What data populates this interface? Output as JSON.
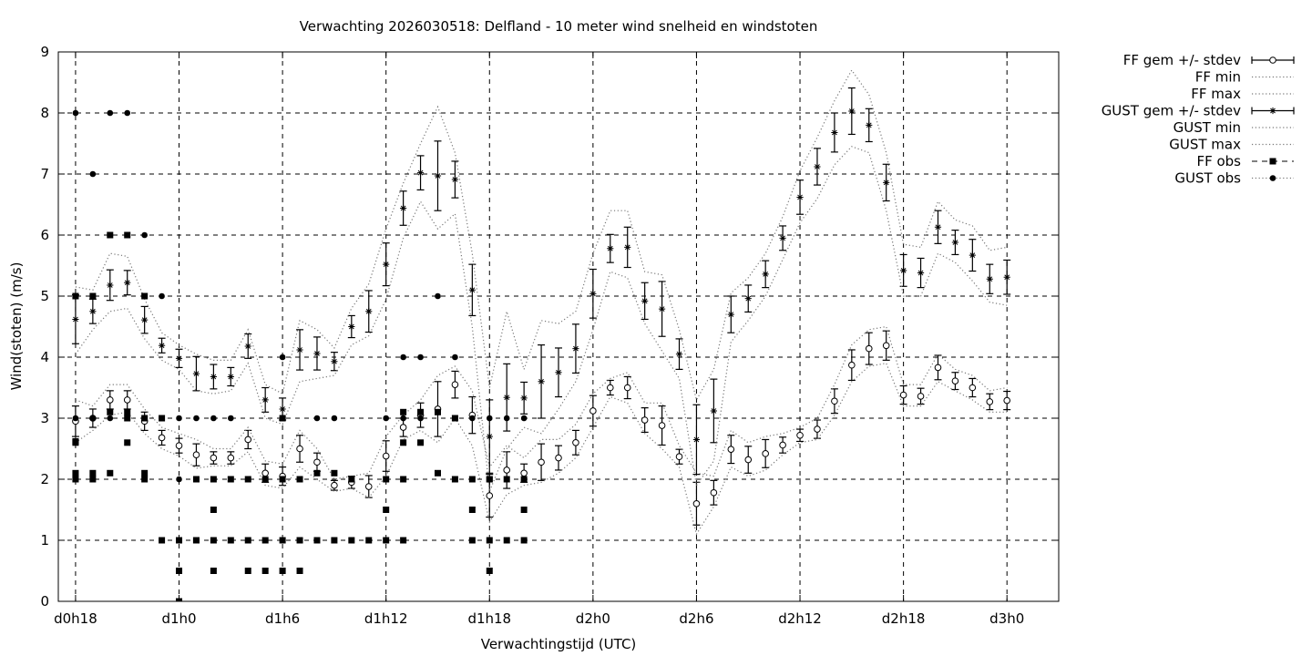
{
  "chart_data": {
    "type": "line",
    "title": "Verwachting 2026030518: Delfland - 10 meter wind snelheid en windstoten",
    "xlabel": "Verwachtingstijd (UTC)",
    "ylabel": "Wind(stoten) (m/s)",
    "ylim": [
      0,
      9
    ],
    "yticks": [
      0,
      1,
      2,
      3,
      4,
      5,
      6,
      7,
      8,
      9
    ],
    "xlim": [
      -1,
      57
    ],
    "xticks": [
      {
        "x": 0,
        "label": "d0h18"
      },
      {
        "x": 6,
        "label": "d1h0"
      },
      {
        "x": 12,
        "label": "d1h6"
      },
      {
        "x": 18,
        "label": "d1h12"
      },
      {
        "x": 24,
        "label": "d1h18"
      },
      {
        "x": 30,
        "label": "d2h0"
      },
      {
        "x": 36,
        "label": "d2h6"
      },
      {
        "x": 42,
        "label": "d2h12"
      },
      {
        "x": 48,
        "label": "d2h18"
      },
      {
        "x": 54,
        "label": "d3h0"
      }
    ],
    "grid": true,
    "legend_position": "outside-top-right",
    "series": [
      {
        "name": "FF gem +/- stdev",
        "style": "errorbar-open-circle",
        "x": [
          0,
          1,
          2,
          3,
          4,
          5,
          6,
          7,
          8,
          9,
          10,
          11,
          12,
          13,
          14,
          15,
          16,
          17,
          18,
          19,
          20,
          21,
          22,
          23,
          24,
          25,
          26,
          27,
          28,
          29,
          30,
          31,
          32,
          33,
          34,
          35,
          36,
          37,
          38,
          39,
          40,
          41,
          42,
          43,
          44,
          45,
          46,
          47,
          48,
          49,
          50,
          51,
          52,
          53,
          54
        ],
        "mean": [
          2.95,
          3.0,
          3.3,
          3.3,
          2.95,
          2.68,
          2.55,
          2.4,
          2.35,
          2.35,
          2.65,
          2.1,
          2.05,
          2.5,
          2.28,
          1.9,
          1.95,
          1.88,
          2.38,
          2.85,
          3.05,
          3.15,
          3.55,
          3.05,
          1.73,
          2.15,
          2.1,
          2.28,
          2.35,
          2.6,
          3.12,
          3.5,
          3.5,
          2.97,
          2.88,
          2.37,
          1.6,
          1.78,
          2.49,
          2.32,
          2.42,
          2.56,
          2.72,
          2.82,
          3.28,
          3.87,
          4.14,
          4.19,
          3.38,
          3.36,
          3.83,
          3.61,
          3.5,
          3.27,
          3.29
        ],
        "stdev": [
          0.25,
          0.15,
          0.15,
          0.15,
          0.15,
          0.12,
          0.12,
          0.18,
          0.1,
          0.1,
          0.15,
          0.15,
          0.15,
          0.22,
          0.15,
          0.08,
          0.1,
          0.18,
          0.25,
          0.15,
          0.2,
          0.45,
          0.22,
          0.3,
          0.35,
          0.3,
          0.15,
          0.3,
          0.2,
          0.2,
          0.25,
          0.12,
          0.18,
          0.2,
          0.32,
          0.12,
          0.35,
          0.2,
          0.23,
          0.22,
          0.23,
          0.13,
          0.1,
          0.15,
          0.2,
          0.25,
          0.26,
          0.24,
          0.15,
          0.13,
          0.2,
          0.14,
          0.15,
          0.13,
          0.15
        ]
      },
      {
        "name": "FF min",
        "style": "dotted",
        "x": [
          0,
          1,
          2,
          3,
          4,
          5,
          6,
          7,
          8,
          9,
          10,
          11,
          12,
          13,
          14,
          15,
          16,
          17,
          18,
          19,
          20,
          21,
          22,
          23,
          24,
          25,
          26,
          27,
          28,
          29,
          30,
          31,
          32,
          33,
          34,
          35,
          36,
          37,
          38,
          39,
          40,
          41,
          42,
          43,
          44,
          45,
          46,
          47,
          48,
          49,
          50,
          51,
          52,
          53,
          54
        ],
        "values": [
          2.6,
          2.8,
          3.05,
          3.1,
          2.75,
          2.5,
          2.38,
          2.18,
          2.22,
          2.22,
          2.45,
          1.9,
          1.85,
          2.2,
          2.0,
          1.8,
          1.85,
          1.7,
          2.05,
          2.65,
          2.8,
          2.6,
          3.0,
          2.55,
          1.3,
          1.75,
          1.9,
          1.95,
          2.1,
          2.35,
          2.85,
          3.35,
          3.25,
          2.75,
          2.5,
          2.2,
          1.1,
          1.55,
          2.2,
          2.05,
          2.15,
          2.4,
          2.6,
          2.65,
          3.05,
          3.6,
          3.85,
          3.9,
          3.2,
          3.2,
          3.6,
          3.45,
          3.3,
          3.1,
          3.1
        ]
      },
      {
        "name": "FF max",
        "style": "dotted",
        "x": [
          0,
          1,
          2,
          3,
          4,
          5,
          6,
          7,
          8,
          9,
          10,
          11,
          12,
          13,
          14,
          15,
          16,
          17,
          18,
          19,
          20,
          21,
          22,
          23,
          24,
          25,
          26,
          27,
          28,
          29,
          30,
          31,
          32,
          33,
          34,
          35,
          36,
          37,
          38,
          39,
          40,
          41,
          42,
          43,
          44,
          45,
          46,
          47,
          48,
          49,
          50,
          51,
          52,
          53,
          54
        ],
        "values": [
          3.3,
          3.2,
          3.55,
          3.55,
          3.15,
          2.85,
          2.75,
          2.65,
          2.5,
          2.5,
          2.85,
          2.3,
          2.25,
          2.8,
          2.5,
          2.0,
          2.05,
          2.1,
          2.7,
          3.05,
          3.3,
          3.7,
          3.85,
          3.45,
          2.2,
          2.55,
          2.35,
          2.65,
          2.65,
          2.9,
          3.4,
          3.65,
          3.75,
          3.25,
          3.25,
          2.55,
          2.1,
          2.05,
          2.8,
          2.6,
          2.7,
          2.75,
          2.85,
          3.0,
          3.55,
          4.2,
          4.45,
          4.5,
          3.55,
          3.55,
          4.05,
          3.8,
          3.7,
          3.45,
          3.5
        ]
      },
      {
        "name": "GUST gem +/- stdev",
        "style": "errorbar-star",
        "x": [
          0,
          1,
          2,
          3,
          4,
          5,
          6,
          7,
          8,
          9,
          10,
          11,
          12,
          13,
          14,
          15,
          16,
          17,
          18,
          19,
          20,
          21,
          22,
          23,
          24,
          25,
          26,
          27,
          28,
          29,
          30,
          31,
          32,
          33,
          34,
          35,
          36,
          37,
          38,
          39,
          40,
          41,
          42,
          43,
          44,
          45,
          46,
          47,
          48,
          49,
          50,
          51,
          52,
          53,
          54
        ],
        "mean": [
          4.62,
          4.75,
          5.18,
          5.22,
          4.61,
          4.19,
          3.98,
          3.73,
          3.68,
          3.68,
          4.18,
          3.3,
          3.15,
          4.12,
          4.06,
          3.93,
          4.5,
          4.75,
          5.52,
          6.44,
          7.02,
          6.97,
          6.91,
          5.1,
          2.7,
          3.34,
          3.33,
          3.6,
          3.75,
          4.14,
          5.04,
          5.78,
          5.8,
          4.92,
          4.79,
          4.05,
          2.65,
          3.12,
          4.7,
          4.96,
          5.36,
          5.95,
          6.62,
          7.12,
          7.68,
          8.03,
          7.8,
          6.86,
          5.42,
          5.38,
          6.13,
          5.88,
          5.67,
          5.28,
          5.31
        ],
        "stdev": [
          0.4,
          0.2,
          0.25,
          0.2,
          0.22,
          0.12,
          0.15,
          0.28,
          0.2,
          0.15,
          0.2,
          0.2,
          0.18,
          0.33,
          0.27,
          0.15,
          0.18,
          0.34,
          0.35,
          0.28,
          0.28,
          0.57,
          0.3,
          0.42,
          0.6,
          0.55,
          0.26,
          0.6,
          0.4,
          0.4,
          0.4,
          0.23,
          0.33,
          0.3,
          0.45,
          0.25,
          0.57,
          0.52,
          0.3,
          0.22,
          0.22,
          0.2,
          0.28,
          0.3,
          0.32,
          0.38,
          0.27,
          0.3,
          0.26,
          0.24,
          0.27,
          0.2,
          0.26,
          0.24,
          0.28
        ]
      },
      {
        "name": "GUST min",
        "style": "dotted",
        "x": [
          0,
          1,
          2,
          3,
          4,
          5,
          6,
          7,
          8,
          9,
          10,
          11,
          12,
          13,
          14,
          15,
          16,
          17,
          18,
          19,
          20,
          21,
          22,
          23,
          24,
          25,
          26,
          27,
          28,
          29,
          30,
          31,
          32,
          33,
          34,
          35,
          36,
          37,
          38,
          39,
          40,
          41,
          42,
          43,
          44,
          45,
          46,
          47,
          48,
          49,
          50,
          51,
          52,
          53,
          54
        ],
        "values": [
          4.05,
          4.45,
          4.75,
          4.8,
          4.3,
          3.95,
          3.8,
          3.45,
          3.4,
          3.45,
          3.9,
          3.0,
          2.9,
          3.6,
          3.65,
          3.7,
          4.2,
          4.35,
          4.95,
          5.95,
          6.55,
          6.1,
          6.35,
          4.5,
          1.8,
          2.5,
          2.85,
          2.75,
          3.15,
          3.6,
          4.45,
          5.4,
          5.3,
          4.55,
          4.1,
          3.65,
          1.9,
          2.3,
          4.25,
          4.6,
          5.0,
          5.6,
          6.2,
          6.6,
          7.15,
          7.45,
          7.35,
          6.4,
          5.0,
          5.0,
          5.7,
          5.55,
          5.25,
          4.9,
          4.85
        ]
      },
      {
        "name": "GUST max",
        "style": "dotted",
        "x": [
          0,
          1,
          2,
          3,
          4,
          5,
          6,
          7,
          8,
          9,
          10,
          11,
          12,
          13,
          14,
          15,
          16,
          17,
          18,
          19,
          20,
          21,
          22,
          23,
          24,
          25,
          26,
          27,
          28,
          29,
          30,
          31,
          32,
          33,
          34,
          35,
          36,
          37,
          38,
          39,
          40,
          41,
          42,
          43,
          44,
          45,
          46,
          47,
          48,
          49,
          50,
          51,
          52,
          53,
          54
        ],
        "values": [
          5.15,
          5.1,
          5.7,
          5.65,
          4.95,
          4.4,
          4.2,
          4.05,
          3.95,
          3.95,
          4.45,
          3.55,
          3.4,
          4.6,
          4.45,
          4.15,
          4.8,
          5.2,
          6.1,
          6.85,
          7.5,
          8.1,
          7.35,
          5.7,
          3.5,
          4.75,
          3.8,
          4.6,
          4.55,
          4.75,
          5.7,
          6.4,
          6.4,
          5.4,
          5.35,
          4.45,
          3.3,
          3.8,
          5.05,
          5.3,
          5.7,
          6.3,
          7.05,
          7.6,
          8.2,
          8.7,
          8.3,
          7.35,
          5.85,
          5.8,
          6.55,
          6.25,
          6.15,
          5.75,
          5.8
        ]
      },
      {
        "name": "FF obs",
        "style": "square",
        "x": [
          0,
          0,
          0,
          0,
          0,
          1,
          1,
          1,
          2,
          2,
          2,
          3,
          3,
          3,
          3,
          4,
          4,
          4,
          4,
          5,
          5,
          6,
          6,
          6,
          7,
          7,
          7,
          8,
          8,
          8,
          8,
          9,
          9,
          10,
          10,
          10,
          11,
          11,
          11,
          12,
          12,
          12,
          12,
          13,
          13,
          13,
          14,
          14,
          15,
          15,
          16,
          16,
          17,
          18,
          18,
          18,
          19,
          19,
          19,
          19,
          20,
          20,
          21,
          21,
          22,
          22,
          23,
          23,
          23,
          24,
          24,
          24,
          24,
          25,
          25,
          26,
          26,
          26
        ],
        "values": [
          5,
          2.6,
          2.1,
          2,
          2.62,
          5,
          2.1,
          2,
          6,
          3.1,
          2.1,
          6,
          3.1,
          3,
          2.6,
          5,
          3,
          2.1,
          2,
          3,
          1,
          1,
          0.5,
          0,
          2,
          1,
          1,
          2,
          1.5,
          1,
          0.5,
          2,
          1,
          2,
          1,
          0.5,
          2,
          1,
          0.5,
          3,
          2,
          1,
          0.5,
          2,
          1,
          0.5,
          2.1,
          1,
          2.1,
          1,
          2,
          1,
          1,
          2,
          1.5,
          1,
          3.1,
          2.6,
          2,
          1,
          3.1,
          2.6,
          3.1,
          2.1,
          3,
          2,
          2,
          1.5,
          1,
          2,
          2,
          1,
          0.5,
          2,
          1,
          2,
          1.5,
          1
        ]
      },
      {
        "name": "GUST obs",
        "style": "circle",
        "x": [
          0,
          0,
          1,
          1,
          2,
          2,
          3,
          3,
          4,
          4,
          5,
          5,
          6,
          6,
          7,
          8,
          9,
          10,
          11,
          12,
          12,
          13,
          14,
          15,
          18,
          18,
          19,
          19,
          20,
          20,
          21,
          22,
          23,
          23,
          24,
          24,
          25,
          25,
          26,
          26
        ],
        "values": [
          8,
          3,
          7,
          3,
          8,
          3,
          8,
          3,
          6,
          3,
          5,
          3,
          3,
          2,
          3,
          3,
          3,
          2,
          2,
          4,
          3,
          2,
          3,
          3,
          3,
          2,
          4,
          3,
          4,
          3,
          5,
          4,
          3,
          2,
          3,
          2,
          3,
          2,
          3,
          2
        ]
      }
    ]
  }
}
